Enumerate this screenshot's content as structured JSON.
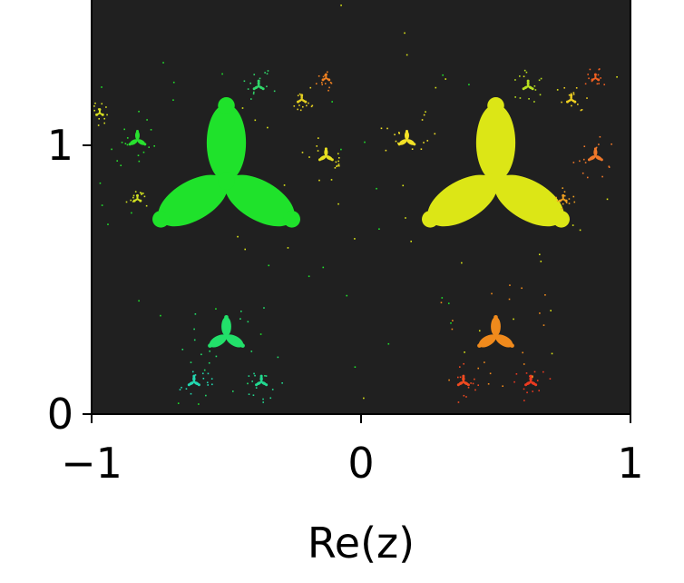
{
  "chart_data": {
    "type": "heatmap",
    "title": "",
    "xlabel": "Re(z)",
    "ylabel": "",
    "xlim": [
      -1,
      1
    ],
    "ylim": [
      0,
      1.6
    ],
    "x_ticks": [
      -1,
      0,
      1
    ],
    "x_tick_labels": [
      "−1",
      "0",
      "1"
    ],
    "y_ticks": [
      0,
      1
    ],
    "y_tick_labels": [
      "0",
      "1"
    ],
    "grid": false,
    "background_color": "#202020",
    "blobs": [
      {
        "x": -0.5,
        "y": 0.866,
        "size": 0.26,
        "color": "#1fe22b"
      },
      {
        "x": 0.5,
        "y": 0.866,
        "size": 0.26,
        "color": "#dce616"
      },
      {
        "x": -0.5,
        "y": 0.29,
        "size": 0.065,
        "color": "#22e06a"
      },
      {
        "x": 0.5,
        "y": 0.29,
        "size": 0.065,
        "color": "#f08a1c"
      },
      {
        "x": -0.83,
        "y": 1.02,
        "size": 0.03,
        "color": "#28e02e"
      },
      {
        "x": 0.17,
        "y": 1.02,
        "size": 0.03,
        "color": "#f2e126"
      },
      {
        "x": -0.13,
        "y": 0.96,
        "size": 0.025,
        "color": "#e8e020"
      },
      {
        "x": 0.87,
        "y": 0.96,
        "size": 0.025,
        "color": "#f0782a"
      },
      {
        "x": -0.62,
        "y": 0.12,
        "size": 0.02,
        "color": "#22d8b0"
      },
      {
        "x": -0.37,
        "y": 0.12,
        "size": 0.02,
        "color": "#22d890"
      },
      {
        "x": 0.38,
        "y": 0.12,
        "size": 0.02,
        "color": "#f04a20"
      },
      {
        "x": 0.63,
        "y": 0.12,
        "size": 0.02,
        "color": "#ec3a20"
      },
      {
        "x": -0.38,
        "y": 1.22,
        "size": 0.018,
        "color": "#30d86a"
      },
      {
        "x": -0.22,
        "y": 1.17,
        "size": 0.015,
        "color": "#e6d020"
      },
      {
        "x": 0.62,
        "y": 1.22,
        "size": 0.018,
        "color": "#b8e020"
      },
      {
        "x": 0.78,
        "y": 1.17,
        "size": 0.015,
        "color": "#f0d020"
      },
      {
        "x": -0.13,
        "y": 1.25,
        "size": 0.012,
        "color": "#f08020"
      },
      {
        "x": 0.87,
        "y": 1.25,
        "size": 0.012,
        "color": "#f06020"
      },
      {
        "x": -0.97,
        "y": 1.12,
        "size": 0.012,
        "color": "#d8e020"
      },
      {
        "x": -0.83,
        "y": 0.8,
        "size": 0.012,
        "color": "#d0e020"
      },
      {
        "x": 0.75,
        "y": 0.8,
        "size": 0.012,
        "color": "#f0a020"
      }
    ]
  }
}
